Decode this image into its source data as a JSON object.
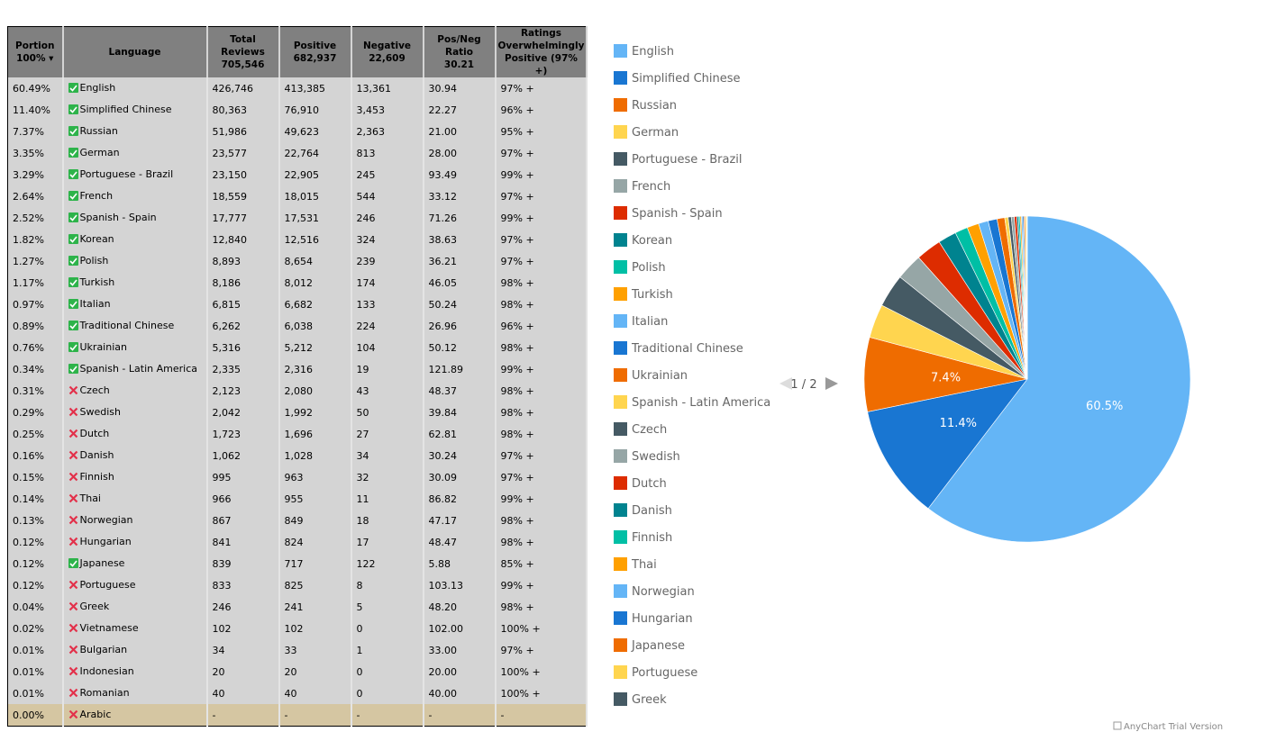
{
  "table": {
    "header": [
      "Portion\n100% ▾",
      "Language",
      "Total\nReviews\n705,546",
      "Positive\n682,937",
      "Negative\n22,609",
      "Pos/Neg\nRatio\n30.21",
      "Ratings\nOverwhelmingly\nPositive (97% +)"
    ],
    "rows": [
      [
        "60.49%",
        "English",
        "426,746",
        "413,385",
        "13,361",
        "30.94",
        "97% +"
      ],
      [
        "11.40%",
        "Simplified Chinese",
        "80,363",
        "76,910",
        "3,453",
        "22.27",
        "96% +"
      ],
      [
        "7.37%",
        "Russian",
        "51,986",
        "49,623",
        "2,363",
        "21.00",
        "95% +"
      ],
      [
        "3.35%",
        "German",
        "23,577",
        "22,764",
        "813",
        "28.00",
        "97% +"
      ],
      [
        "3.29%",
        "Portuguese - Brazil",
        "23,150",
        "22,905",
        "245",
        "93.49",
        "99% +"
      ],
      [
        "2.64%",
        "French",
        "18,559",
        "18,015",
        "544",
        "33.12",
        "97% +"
      ],
      [
        "2.52%",
        "Spanish - Spain",
        "17,777",
        "17,531",
        "246",
        "71.26",
        "99% +"
      ],
      [
        "1.82%",
        "Korean",
        "12,840",
        "12,516",
        "324",
        "38.63",
        "97% +"
      ],
      [
        "1.27%",
        "Polish",
        "8,893",
        "8,654",
        "239",
        "36.21",
        "97% +"
      ],
      [
        "1.17%",
        "Turkish",
        "8,186",
        "8,012",
        "174",
        "46.05",
        "98% +"
      ],
      [
        "0.97%",
        "Italian",
        "6,815",
        "6,682",
        "133",
        "50.24",
        "98% +"
      ],
      [
        "0.89%",
        "Traditional Chinese",
        "6,262",
        "6,038",
        "224",
        "26.96",
        "96% +"
      ],
      [
        "0.76%",
        "Ukrainian",
        "5,316",
        "5,212",
        "104",
        "50.12",
        "98% +"
      ],
      [
        "0.34%",
        "Spanish - Latin America",
        "2,335",
        "2,316",
        "19",
        "121.89",
        "99% +"
      ],
      [
        "0.31%",
        "Czech",
        "2,123",
        "2,080",
        "43",
        "48.37",
        "98% +"
      ],
      [
        "0.29%",
        "Swedish",
        "2,042",
        "1,992",
        "50",
        "39.84",
        "98% +"
      ],
      [
        "0.25%",
        "Dutch",
        "1,723",
        "1,696",
        "27",
        "62.81",
        "98% +"
      ],
      [
        "0.16%",
        "Danish",
        "1,062",
        "1,028",
        "34",
        "30.24",
        "97% +"
      ],
      [
        "0.15%",
        "Finnish",
        "995",
        "963",
        "32",
        "30.09",
        "97% +"
      ],
      [
        "0.14%",
        "Thai",
        "966",
        "955",
        "11",
        "86.82",
        "99% +"
      ],
      [
        "0.13%",
        "Norwegian",
        "867",
        "849",
        "18",
        "47.17",
        "98% +"
      ],
      [
        "0.12%",
        "Hungarian",
        "841",
        "824",
        "17",
        "48.47",
        "98% +"
      ],
      [
        "0.12%",
        "Japanese",
        "839",
        "717",
        "122",
        "5.88",
        "85% +"
      ],
      [
        "0.12%",
        "Portuguese",
        "833",
        "825",
        "8",
        "103.13",
        "99% +"
      ],
      [
        "0.04%",
        "Greek",
        "246",
        "241",
        "5",
        "48.20",
        "98% +"
      ],
      [
        "0.02%",
        "Vietnamese",
        "102",
        "102",
        "0",
        "102.00",
        "100% +"
      ],
      [
        "0.01%",
        "Bulgarian",
        "34",
        "33",
        "1",
        "33.00",
        "97% +"
      ],
      [
        "0.01%",
        "Indonesian",
        "20",
        "20",
        "0",
        "20.00",
        "100% +"
      ],
      [
        "0.01%",
        "Romanian",
        "40",
        "40",
        "0",
        "40.00",
        "100% +"
      ],
      [
        "0.00%",
        "Arabic",
        "-",
        "-",
        "-",
        "-",
        "-"
      ]
    ],
    "checked": [
      true,
      true,
      true,
      true,
      true,
      true,
      true,
      true,
      true,
      true,
      true,
      true,
      true,
      true,
      false,
      false,
      false,
      false,
      false,
      false,
      false,
      false,
      true,
      false,
      false,
      false,
      false,
      false,
      false,
      false
    ],
    "highlighted_row": 29
  },
  "chart_data": {
    "type": "pie",
    "categories": [
      "English",
      "Simplified Chinese",
      "Russian",
      "German",
      "Portuguese - Brazil",
      "French",
      "Spanish - Spain",
      "Korean",
      "Polish",
      "Turkish",
      "Italian",
      "Traditional Chinese",
      "Ukrainian",
      "Spanish - Latin America",
      "Czech",
      "Swedish",
      "Dutch",
      "Danish",
      "Finnish",
      "Thai",
      "Norwegian",
      "Hungarian",
      "Japanese",
      "Portuguese",
      "Greek",
      null,
      null,
      null,
      null
    ],
    "values": [
      60.49,
      11.4,
      7.37,
      3.35,
      3.29,
      2.64,
      2.52,
      1.82,
      1.27,
      1.17,
      0.97,
      0.89,
      0.76,
      0.34,
      0.31,
      0.29,
      0.25,
      0.16,
      0.15,
      0.14,
      0.13,
      0.12,
      0.12,
      0.12,
      0.04,
      0.02,
      0.01,
      0.01,
      0.01
    ],
    "value_labels": [
      "60.5%",
      "11.4%",
      "7.4%",
      null,
      null,
      null,
      null,
      null,
      null,
      null,
      null,
      null,
      null,
      null,
      null,
      null,
      null,
      null,
      null,
      null,
      null,
      null,
      null,
      null,
      null,
      null,
      null,
      null,
      null
    ],
    "colors": [
      "#64b5f6",
      "#1976d2",
      "#ef6c00",
      "#ffd54f",
      "#455a64",
      "#96a6a6",
      "#dd2c00",
      "#00838f",
      "#00bfa5",
      "#ffa000"
    ],
    "legend_pager": "1 / 2",
    "credit": "AnyChart Trial Version"
  }
}
